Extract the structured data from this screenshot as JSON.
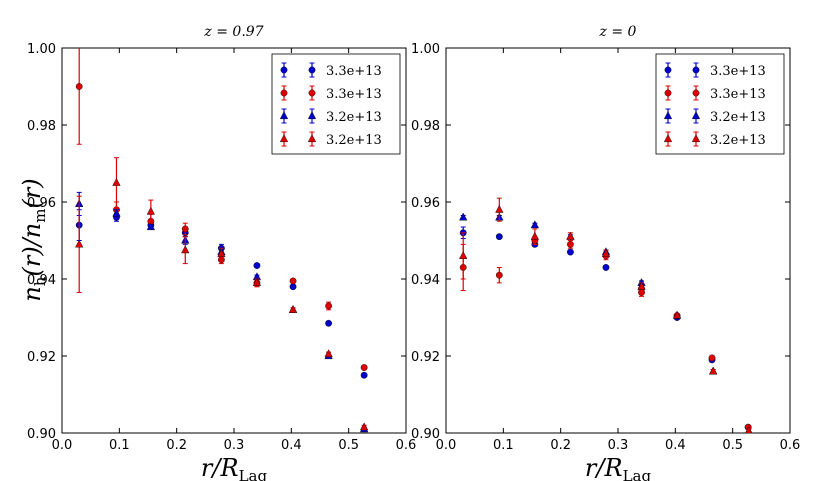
{
  "figure": {
    "ylabel": "n_h(r)/n_m(r)",
    "colors": {
      "blue": "#0000cc",
      "red": "#dd0000"
    }
  },
  "chart_data": [
    {
      "type": "scatter",
      "title": "z = 0.97",
      "xlabel": "r/R_Lag",
      "ylabel": "n_h(r)/n_m(r)",
      "xlim": [
        0.0,
        0.6
      ],
      "ylim": [
        0.9,
        1.0
      ],
      "xticks": [
        "0.0",
        "0.1",
        "0.2",
        "0.3",
        "0.4",
        "0.5",
        "0.6"
      ],
      "yticks": [
        "0.90",
        "0.92",
        "0.94",
        "0.96",
        "0.98",
        "1.00"
      ],
      "legend": "top-right",
      "series": [
        {
          "name": "3.3e+13",
          "color": "#0000cc",
          "marker": "circle",
          "x": [
            0.03,
            0.095,
            0.155,
            0.215,
            0.278,
            0.34,
            0.403,
            0.465,
            0.527
          ],
          "y": [
            0.954,
            0.956,
            0.954,
            0.952,
            0.948,
            0.9435,
            0.938,
            0.9285,
            0.915
          ],
          "err": [
            0.004,
            0.001,
            0.001,
            0.001,
            0.001,
            0.0005,
            0.0005,
            0.0005,
            0.0005
          ]
        },
        {
          "name": "3.3e+13",
          "color": "#dd0000",
          "marker": "circle",
          "x": [
            0.03,
            0.095,
            0.155,
            0.215,
            0.278,
            0.34,
            0.403,
            0.465,
            0.527
          ],
          "y": [
            0.99,
            0.958,
            0.955,
            0.953,
            0.945,
            0.939,
            0.9395,
            0.933,
            0.917
          ],
          "err": [
            0.015,
            0.002,
            0.002,
            0.0015,
            0.001,
            0.001,
            0.0005,
            0.001,
            0.0005
          ]
        },
        {
          "name": "3.2e+13",
          "color": "#0000cc",
          "marker": "triangle",
          "x": [
            0.03,
            0.095,
            0.155,
            0.215,
            0.278,
            0.34,
            0.403,
            0.465,
            0.527
          ],
          "y": [
            0.9595,
            0.957,
            0.9535,
            0.95,
            0.947,
            0.9405,
            0.932,
            0.92,
            0.901
          ],
          "err": [
            0.003,
            0.001,
            0.0005,
            0.001,
            0.0005,
            0.0005,
            0.0005,
            0.0005,
            0.0005
          ]
        },
        {
          "name": "3.2e+13",
          "color": "#dd0000",
          "marker": "triangle",
          "x": [
            0.03,
            0.095,
            0.155,
            0.215,
            0.278,
            0.34,
            0.403,
            0.465,
            0.527
          ],
          "y": [
            0.949,
            0.965,
            0.9575,
            0.9475,
            0.9465,
            0.939,
            0.932,
            0.9205,
            0.9015
          ],
          "err": [
            0.0125,
            0.0065,
            0.003,
            0.0035,
            0.0015,
            0.001,
            0.0005,
            0.0005,
            0.0005
          ]
        }
      ]
    },
    {
      "type": "scatter",
      "title": "z = 0",
      "xlabel": "r/R_Lag",
      "ylabel": "n_h(r)/n_m(r)",
      "xlim": [
        0.0,
        0.6
      ],
      "ylim": [
        0.9,
        1.0
      ],
      "xticks": [
        "0.0",
        "0.1",
        "0.2",
        "0.3",
        "0.4",
        "0.5",
        "0.6"
      ],
      "yticks": [
        "0.90",
        "0.92",
        "0.94",
        "0.96",
        "0.98",
        "1.00"
      ],
      "legend": "top-right",
      "series": [
        {
          "name": "3.3e+13",
          "color": "#0000cc",
          "marker": "circle",
          "x": [
            0.03,
            0.093,
            0.155,
            0.217,
            0.279,
            0.341,
            0.403,
            0.464,
            0.527
          ],
          "y": [
            0.952,
            0.951,
            0.949,
            0.947,
            0.943,
            0.9375,
            0.93,
            0.919,
            0.9015
          ],
          "err": [
            0.0015,
            0.0005,
            0.0005,
            0.0005,
            0.0005,
            0.0005,
            0.0005,
            0.0005,
            0.0005
          ]
        },
        {
          "name": "3.3e+13",
          "color": "#dd0000",
          "marker": "circle",
          "x": [
            0.03,
            0.093,
            0.155,
            0.217,
            0.279,
            0.341,
            0.403,
            0.464,
            0.527
          ],
          "y": [
            0.943,
            0.941,
            0.95,
            0.949,
            0.946,
            0.9365,
            0.9305,
            0.9195,
            0.9015
          ],
          "err": [
            0.006,
            0.002,
            0.001,
            0.001,
            0.001,
            0.001,
            0.0005,
            0.0005,
            0.0005
          ]
        },
        {
          "name": "3.2e+13",
          "color": "#0000cc",
          "marker": "triangle",
          "x": [
            0.03,
            0.093,
            0.155,
            0.217,
            0.279,
            0.341,
            0.403,
            0.466,
            0.528
          ],
          "y": [
            0.956,
            0.956,
            0.954,
            0.951,
            0.947,
            0.939,
            0.9305,
            0.916,
            0.9005
          ],
          "err": [
            0.0005,
            0.0005,
            0.0005,
            0.0005,
            0.0005,
            0.0005,
            0.0005,
            0.0005,
            0.0005
          ]
        },
        {
          "name": "3.2e+13",
          "color": "#dd0000",
          "marker": "triangle",
          "x": [
            0.03,
            0.093,
            0.155,
            0.217,
            0.279,
            0.341,
            0.403,
            0.466,
            0.528
          ],
          "y": [
            0.946,
            0.958,
            0.951,
            0.951,
            0.9465,
            0.938,
            0.9305,
            0.916,
            0.9005
          ],
          "err": [
            0.006,
            0.003,
            0.002,
            0.001,
            0.001,
            0.001,
            0.0005,
            0.0005,
            0.0005
          ]
        }
      ]
    }
  ]
}
